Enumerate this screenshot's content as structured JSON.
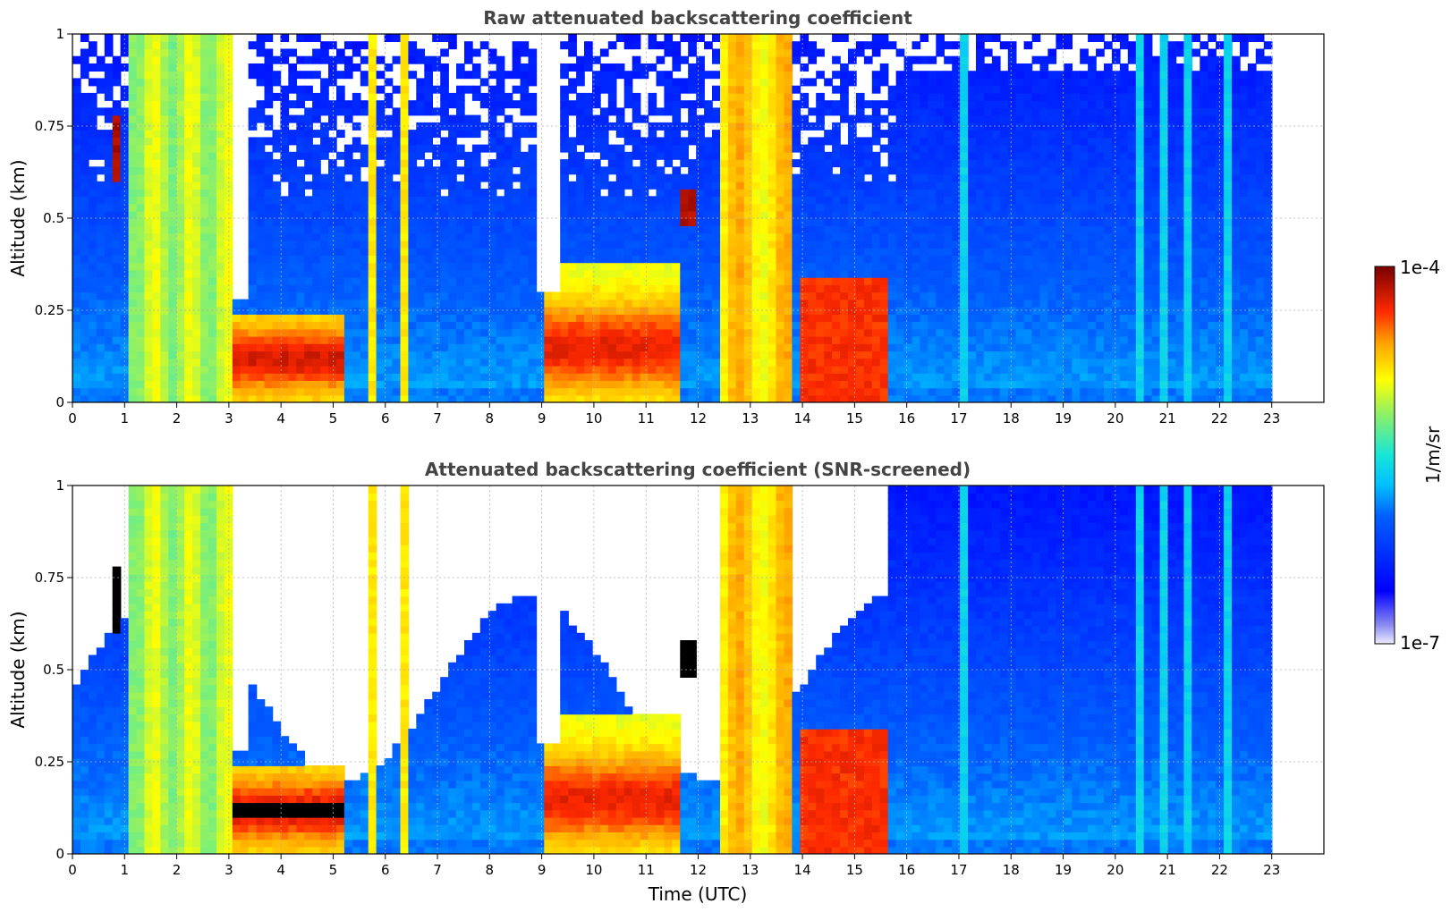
{
  "chart_data": [
    {
      "type": "heatmap",
      "title": "Raw attenuated backscattering coefficient",
      "xlabel": "",
      "ylabel": "Altitude (km)",
      "xlim": [
        0,
        24
      ],
      "ylim": [
        0,
        1
      ],
      "xticks": [
        "0",
        "1",
        "2",
        "3",
        "4",
        "5",
        "6",
        "7",
        "8",
        "9",
        "10",
        "11",
        "12",
        "13",
        "14",
        "15",
        "16",
        "17",
        "18",
        "19",
        "20",
        "21",
        "22",
        "23"
      ],
      "yticks": [
        "0",
        "0.25",
        "0.5",
        "0.75",
        "1"
      ],
      "grid": true,
      "data_end_hour": 23,
      "screened": false
    },
    {
      "type": "heatmap",
      "title": "Attenuated backscattering coefficient (SNR-screened)",
      "xlabel": "Time (UTC)",
      "ylabel": "Altitude (km)",
      "xlim": [
        0,
        24
      ],
      "ylim": [
        0,
        1
      ],
      "xticks": [
        "0",
        "1",
        "2",
        "3",
        "4",
        "5",
        "6",
        "7",
        "8",
        "9",
        "10",
        "11",
        "12",
        "13",
        "14",
        "15",
        "16",
        "17",
        "18",
        "19",
        "20",
        "21",
        "22",
        "23"
      ],
      "yticks": [
        "0",
        "0.25",
        "0.5",
        "0.75",
        "1"
      ],
      "grid": true,
      "data_end_hour": 23,
      "screened": true
    }
  ],
  "colorbar": {
    "label": "1/m/sr",
    "max_label": "1e-4",
    "min_label": "1e-7",
    "scale": "log",
    "colormap": "jet"
  },
  "colors": {
    "title": "#444444",
    "grid": "#b0b0b0",
    "background": "#ffffff"
  }
}
